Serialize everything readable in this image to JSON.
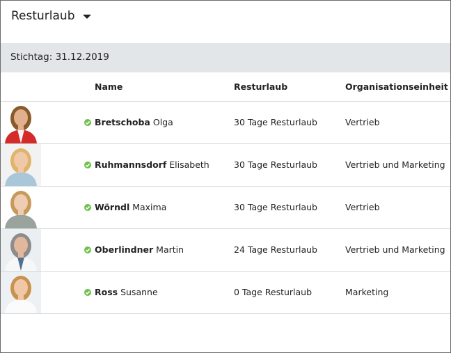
{
  "header": {
    "title": "Resturlaub",
    "dropdown_icon": "caret-down-icon"
  },
  "stichtag": "Stichtag: 31.12.2019",
  "columns": {
    "name": "Name",
    "resturlaub": "Resturlaub",
    "org": "Organisationseinheit"
  },
  "status_color": "#6cc24a",
  "rows": [
    {
      "last": "Bretschoba",
      "first": "Olga",
      "resturlaub": "30 Tage Resturlaub",
      "org": "Vertrieb",
      "photo": {
        "bg": "#ffffff",
        "hair": "#8a5a2b",
        "skin": "#e0b08f",
        "body": "#d42a2a",
        "inner": "#f4f4f4"
      }
    },
    {
      "last": "Ruhmannsdorf",
      "first": "Elisabeth",
      "resturlaub": "30 Tage Resturlaub",
      "org": "Vertrieb und Marketing",
      "photo": {
        "bg": "#f2f2f2",
        "hair": "#e0b56a",
        "skin": "#f0c9a8",
        "body": "#a9c7d8",
        "inner": "#a9c7d8"
      }
    },
    {
      "last": "Wörndl",
      "first": "Maxima",
      "resturlaub": "30 Tage Resturlaub",
      "org": "Vertrieb",
      "photo": {
        "bg": "#ffffff",
        "hair": "#c79a5c",
        "skin": "#efcdb2",
        "body": "#9aa39c",
        "inner": "#9aa39c"
      }
    },
    {
      "last": "Oberlindner",
      "first": "Martin",
      "resturlaub": "24 Tage Resturlaub",
      "org": "Vertrieb und Marketing",
      "photo": {
        "bg": "#eceff1",
        "hair": "#8c8c8c",
        "skin": "#e2b79b",
        "body": "#f7f7f7",
        "inner": "#4f6f93"
      }
    },
    {
      "last": "Ross",
      "first": "Susanne",
      "resturlaub": "0 Tage Resturlaub",
      "org": "Marketing",
      "photo": {
        "bg": "#eef1f3",
        "hair": "#c8924f",
        "skin": "#f0c8a8",
        "body": "#fbfbfb",
        "inner": "#fbfbfb"
      }
    }
  ]
}
